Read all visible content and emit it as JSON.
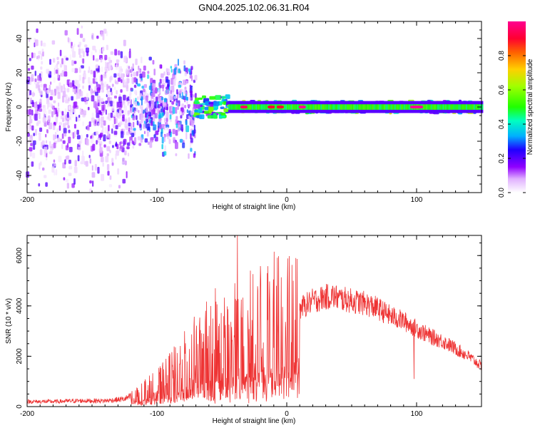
{
  "title": "GN04.2025.102.06.31.R04",
  "chart_data": [
    {
      "type": "heatmap",
      "xlabel": "Height of straight line (km)",
      "ylabel": "Frequency (Hz)",
      "xlim": [
        -200,
        150
      ],
      "ylim": [
        -50,
        50
      ],
      "x_ticks": [
        -200,
        -100,
        0,
        100
      ],
      "y_ticks": [
        -40,
        -20,
        0,
        20,
        40
      ],
      "colorbar": {
        "label": "Normalized spectral amplitude",
        "range": [
          0,
          1
        ],
        "ticks": [
          "0.0",
          "0.2",
          "0.4",
          "0.6",
          "0.8"
        ],
        "colors": [
          "#ffffff",
          "#ff00ff",
          "#8000ff",
          "#0000ff",
          "#00ffff",
          "#00ff00",
          "#ffff00",
          "#ff8000",
          "#ff0000",
          "#ff0080"
        ]
      },
      "regions": [
        {
          "x": [
            -200,
            -120
          ],
          "freq_spread_hz": 50,
          "amplitude": 0.15,
          "note": "broadband noise"
        },
        {
          "x": [
            -120,
            -70
          ],
          "freq_spread_hz": 30,
          "amplitude": 0.25
        },
        {
          "x": [
            -70,
            -45
          ],
          "freq_spread_hz": 6,
          "amplitude": 0.4
        },
        {
          "x": [
            -45,
            150
          ],
          "freq_spread_hz": 3,
          "amplitude": 0.45,
          "note": "narrow band near 0 Hz"
        }
      ],
      "peaks": [
        {
          "x": -33,
          "f": 0,
          "amplitude": 0.95
        },
        {
          "x": -12,
          "f": 0,
          "amplitude": 0.9
        },
        {
          "x": -5,
          "f": 0,
          "amplitude": 0.9
        },
        {
          "x": 12,
          "f": 0,
          "amplitude": 1.0
        },
        {
          "x": 100,
          "f": 0,
          "amplitude": 1.0
        }
      ],
      "grid": false
    },
    {
      "type": "line",
      "xlabel": "Height of straight line (km)",
      "ylabel": "SNR (10 * v/v)",
      "xlim": [
        -200,
        150
      ],
      "ylim": [
        0,
        6800
      ],
      "x_ticks": [
        -200,
        -100,
        0,
        100
      ],
      "y_ticks": [
        0,
        2000,
        4000,
        6000
      ],
      "series_color": "#ee3333",
      "x": [
        -200,
        -180,
        -160,
        -140,
        -125,
        -115,
        -100,
        -90,
        -80,
        -70,
        -60,
        -50,
        -40,
        -30,
        -20,
        -10,
        0,
        10,
        20,
        30,
        35,
        40,
        50,
        60,
        70,
        80,
        90,
        100,
        110,
        120,
        130,
        140,
        150
      ],
      "y": [
        200,
        200,
        230,
        230,
        300,
        500,
        800,
        1100,
        1500,
        1900,
        2200,
        2300,
        2400,
        2600,
        2900,
        3200,
        3500,
        3900,
        4200,
        4350,
        4400,
        4300,
        4200,
        4100,
        3900,
        3600,
        3400,
        3100,
        2800,
        2600,
        2300,
        2000,
        1600
      ],
      "spikes": [
        {
          "x": -38,
          "y": 6800
        },
        {
          "x": -55,
          "y": 4700
        },
        {
          "x": -40,
          "y": 4900
        },
        {
          "x": -28,
          "y": 5400
        },
        {
          "x": -15,
          "y": 5300
        },
        {
          "x": -8,
          "y": 4800
        },
        {
          "x": 5,
          "y": 5000
        },
        {
          "x": 98,
          "y": 1100
        }
      ],
      "grid": false
    }
  ]
}
